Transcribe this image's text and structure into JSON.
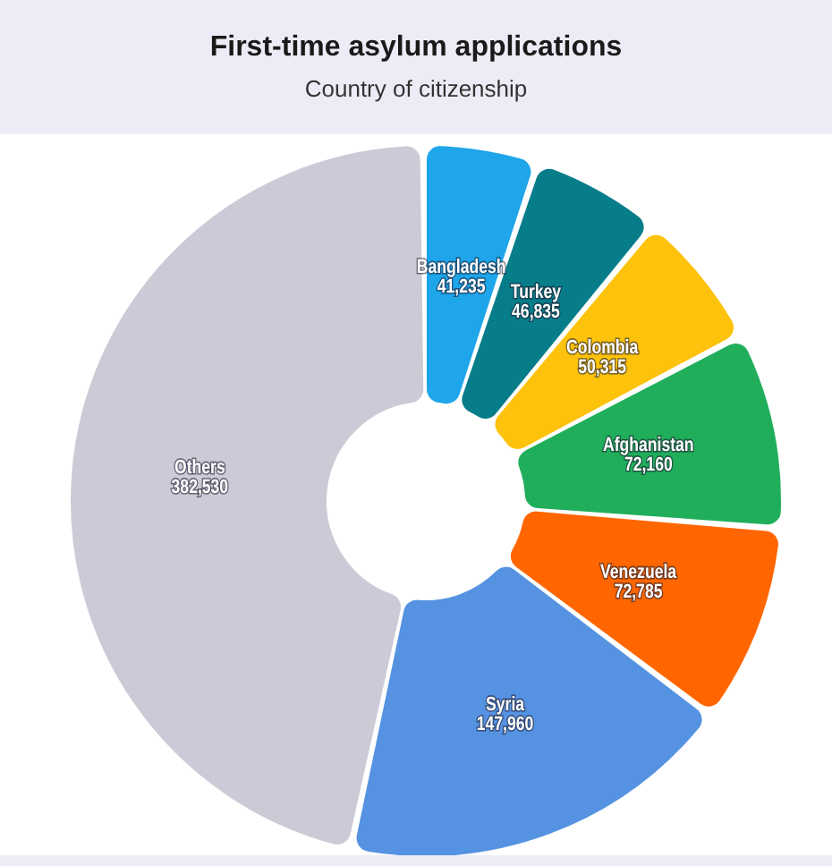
{
  "chart_data": {
    "type": "donut",
    "title": "First-time asylum applications",
    "subtitle": "Country of citizenship",
    "categories": [
      "Bangladesh",
      "Turkey",
      "Colombia",
      "Afghanistan",
      "Venezuela",
      "Syria",
      "Others"
    ],
    "values": [
      41235,
      46835,
      50315,
      72160,
      72785,
      147960,
      382530
    ],
    "value_labels": [
      "41,235",
      "46,835",
      "50,315",
      "72,160",
      "72,785",
      "147,960",
      "382,530"
    ],
    "colors": [
      "#1ea5ea",
      "#087d8a",
      "#fdc20b",
      "#20ae5b",
      "#ff6600",
      "#5592e2",
      "#cbcad6"
    ]
  }
}
